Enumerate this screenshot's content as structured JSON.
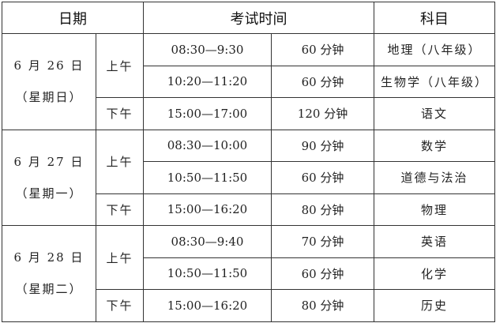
{
  "header": {
    "date": "日期",
    "time": "考试时间",
    "subject": "科目"
  },
  "days": [
    {
      "date": "6 月 26 日",
      "weekday": "（星期日）",
      "sessions": [
        {
          "period": "上午",
          "exams": [
            {
              "time": "08:30—9:30",
              "duration": "60 分钟",
              "subject": "地理（八年级）"
            },
            {
              "time": "10:20—11:20",
              "duration": "60 分钟",
              "subject": "生物学（八年级）"
            }
          ]
        },
        {
          "period": "下午",
          "exams": [
            {
              "time": "15:00—17:00",
              "duration": "120 分钟",
              "subject": "语文"
            }
          ]
        }
      ]
    },
    {
      "date": "6 月 27 日",
      "weekday": "（星期一）",
      "sessions": [
        {
          "period": "上午",
          "exams": [
            {
              "time": "08:30—10:00",
              "duration": "90 分钟",
              "subject": "数学"
            },
            {
              "time": "10:50—11:50",
              "duration": "60 分钟",
              "subject": "道德与法治"
            }
          ]
        },
        {
          "period": "下午",
          "exams": [
            {
              "time": "15:00—16:20",
              "duration": "80 分钟",
              "subject": "物理"
            }
          ]
        }
      ]
    },
    {
      "date": "6 月 28 日",
      "weekday": "（星期二）",
      "sessions": [
        {
          "period": "上午",
          "exams": [
            {
              "time": "08:30—9:40",
              "duration": "70 分钟",
              "subject": "英语"
            },
            {
              "time": "10:50—11:50",
              "duration": "60 分钟",
              "subject": "化学"
            }
          ]
        },
        {
          "period": "下午",
          "exams": [
            {
              "time": "15:00—16:20",
              "duration": "80 分钟",
              "subject": "历史"
            }
          ]
        }
      ]
    }
  ]
}
